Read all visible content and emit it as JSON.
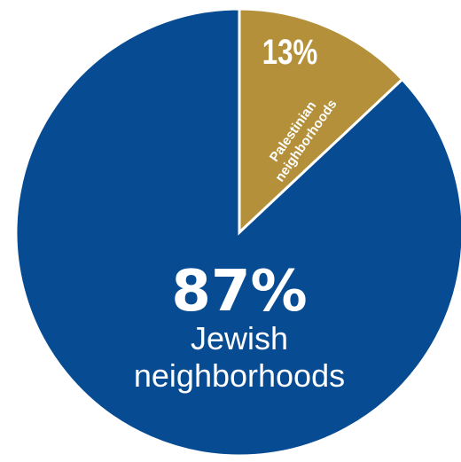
{
  "chart_data": {
    "type": "pie",
    "title": "",
    "slices": [
      {
        "name": "Jewish neighborhoods",
        "value": 87,
        "pct_label": "87%",
        "label_line1": "Jewish",
        "label_line2": "neighborhoods",
        "color": "#074b93"
      },
      {
        "name": "Palestinian neighborhoods",
        "value": 13,
        "pct_label": "13%",
        "label_line1": "Palestinian",
        "label_line2": "neighborhoods",
        "color": "#b5903a"
      }
    ],
    "start": "top",
    "direction": "clockwise-from-palestinian"
  }
}
